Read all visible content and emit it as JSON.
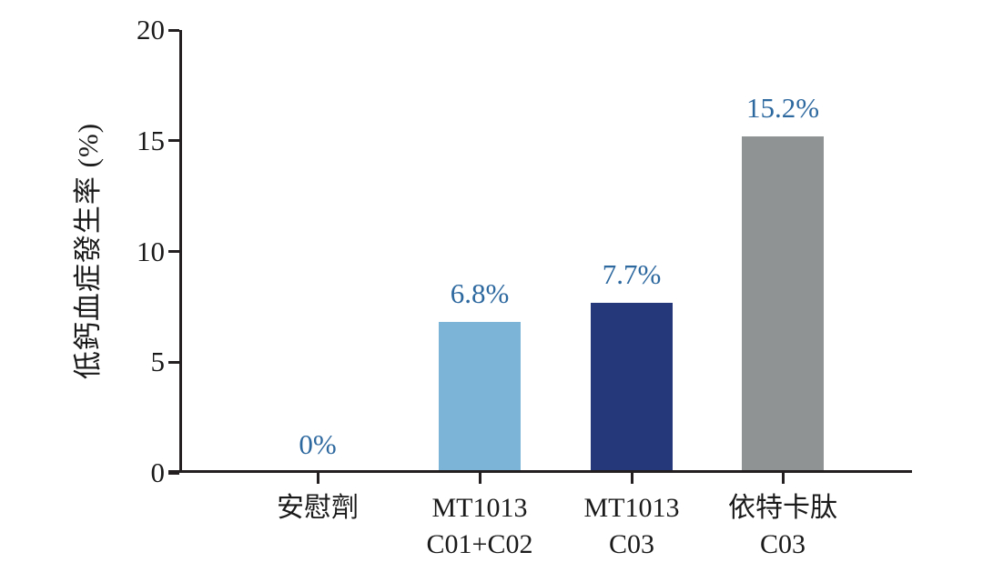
{
  "figure": {
    "background": "#FFFFFF"
  },
  "chart_data": {
    "type": "bar",
    "title": "",
    "xlabel": "",
    "ylabel": "低鈣血症發生率 (%)",
    "ylim": [
      0,
      20
    ],
    "yticks": [
      0,
      5,
      10,
      15,
      20
    ],
    "grid": false,
    "legend": "none",
    "categories": [
      "安慰劑",
      "MT1013 C01+C02",
      "MT1013 C03",
      "依特卡肽 C03"
    ],
    "category_label_lines": [
      [
        "安慰劑"
      ],
      [
        "MT1013",
        "C01+C02"
      ],
      [
        "MT1013",
        "C03"
      ],
      [
        "依特卡肽",
        "C03"
      ]
    ],
    "values": [
      0,
      6.8,
      7.7,
      15.2
    ],
    "value_labels": [
      "0%",
      "6.8%",
      "7.7%",
      "15.2%"
    ],
    "bar_colors": [
      "none",
      "#7CB4D8",
      "#25397A",
      "#909394"
    ],
    "value_label_color": "#2D689F",
    "axis_color": "#231F20",
    "tick_label_color": "#1A1A1A"
  }
}
